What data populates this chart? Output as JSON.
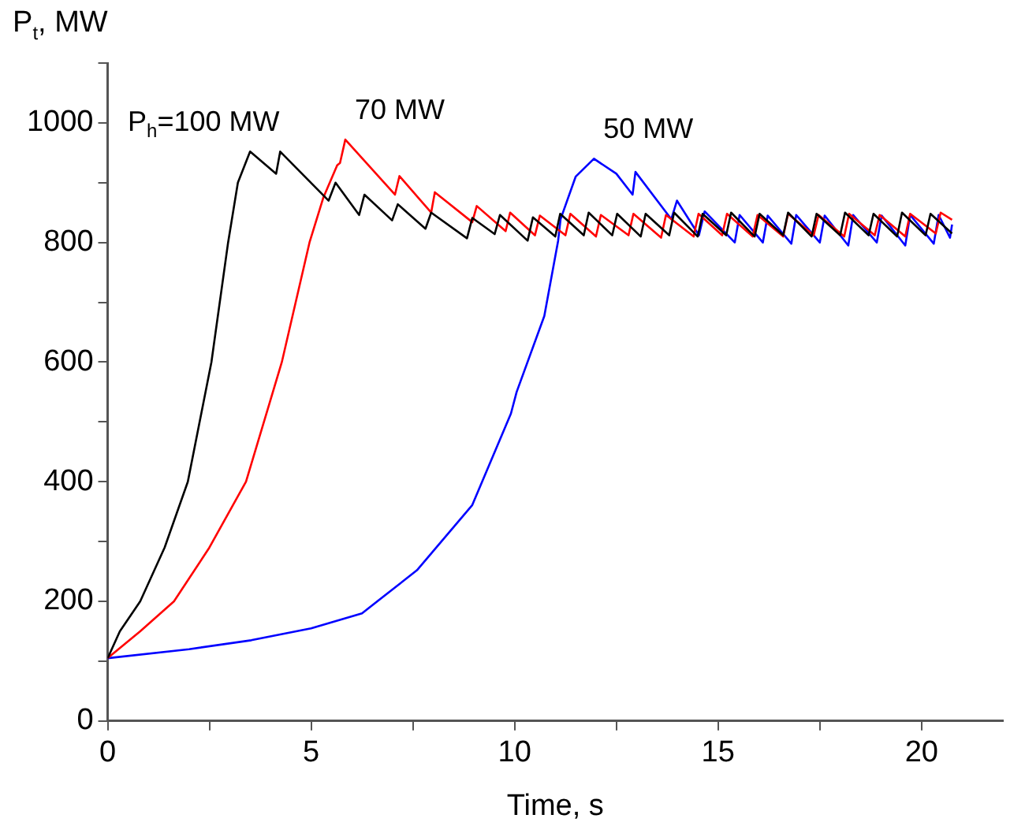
{
  "chart_data": {
    "type": "line",
    "xlabel": "Time, s",
    "ylabel": "P$_{t}$, MW",
    "xlim": [
      0,
      22
    ],
    "xticks": [
      0,
      {
        "value": 2.5,
        "label": null
      },
      5,
      {
        "value": 7.5,
        "label": null
      },
      10,
      {
        "value": 12.5,
        "label": null
      },
      15,
      {
        "value": 17.5,
        "label": null
      },
      20
    ],
    "ylim": [
      0,
      1100
    ],
    "yticks": [
      0,
      {
        "value": 100,
        "label": null
      },
      200,
      {
        "value": 300,
        "label": null
      },
      400,
      {
        "value": 500,
        "label": null
      },
      600,
      {
        "value": 700,
        "label": null
      },
      800,
      {
        "value": 900,
        "label": null
      },
      1000,
      {
        "value": 1100,
        "label": null
      }
    ],
    "grid": false,
    "legend": false,
    "marker": "none",
    "line_style": "solid",
    "series": [
      {
        "name": "P$_{h}$=100 MW",
        "color": "#000000",
        "x": [
          0,
          0.3,
          0.8,
          1.4,
          1.97,
          2.55,
          2.96,
          3.2,
          3.5,
          4.14,
          4.24,
          5.43,
          5.6,
          6.18,
          6.31,
          6.99,
          7.13,
          7.81,
          7.95,
          8.83,
          8.96,
          9.51,
          9.64,
          10.32,
          10.45,
          11.0,
          11.12,
          11.7,
          11.82,
          12.4,
          12.52,
          13.1,
          13.22,
          13.8,
          13.92,
          14.5,
          14.62,
          15.2,
          15.32,
          15.9,
          16.02,
          16.6,
          16.72,
          17.3,
          17.42,
          18.0,
          18.12,
          18.7,
          18.82,
          19.4,
          19.52,
          20.1,
          20.22,
          20.75
        ],
        "values": [
          105,
          150,
          200,
          290,
          400,
          600,
          800,
          900,
          952,
          915,
          952,
          870,
          900,
          846,
          880,
          837,
          864,
          823,
          850,
          807,
          841,
          814,
          846,
          803,
          842,
          810,
          848,
          812,
          850,
          812,
          848,
          810,
          848,
          812,
          850,
          810,
          848,
          812,
          850,
          810,
          848,
          812,
          850,
          810,
          848,
          812,
          850,
          812,
          848,
          810,
          850,
          812,
          848,
          815
        ]
      },
      {
        "name": "70 MW",
        "color": "#ff0000",
        "x": [
          0,
          0.8,
          1.63,
          2.5,
          3.4,
          4.28,
          4.96,
          5.3,
          5.64,
          5.71,
          5.84,
          7.06,
          7.17,
          7.95,
          8.04,
          8.96,
          9.07,
          9.78,
          9.89,
          10.5,
          10.62,
          11.25,
          11.37,
          12.0,
          12.12,
          12.8,
          12.92,
          13.6,
          13.72,
          14.4,
          14.52,
          15.1,
          15.22,
          15.85,
          15.97,
          16.6,
          16.72,
          17.35,
          17.47,
          18.1,
          18.22,
          18.85,
          18.97,
          19.6,
          19.72,
          20.35,
          20.47,
          20.75
        ],
        "values": [
          105,
          150,
          200,
          290,
          400,
          600,
          800,
          875,
          929,
          933,
          972,
          880,
          911,
          850,
          884,
          834,
          861,
          819,
          850,
          812,
          845,
          812,
          848,
          810,
          846,
          812,
          848,
          808,
          846,
          810,
          848,
          812,
          848,
          810,
          846,
          810,
          848,
          812,
          846,
          810,
          848,
          812,
          846,
          810,
          848,
          815,
          850,
          838
        ]
      },
      {
        "name": "50 MW",
        "color": "#0000ff",
        "x": [
          0,
          2,
          3.53,
          5,
          6.25,
          7.6,
          8.96,
          9.91,
          10.05,
          10.73,
          11.07,
          11.13,
          11.5,
          11.95,
          12.5,
          12.9,
          12.97,
          13.85,
          13.99,
          14.53,
          14.67,
          15.41,
          15.53,
          16.1,
          16.22,
          16.8,
          16.92,
          17.5,
          17.62,
          18.2,
          18.32,
          18.9,
          19.02,
          19.6,
          19.72,
          20.3,
          20.42,
          20.7,
          20.75
        ],
        "values": [
          105,
          120,
          135,
          155,
          180,
          252,
          361,
          514,
          550,
          677,
          803,
          839,
          910,
          940,
          915,
          880,
          918,
          839,
          870,
          812,
          852,
          800,
          846,
          800,
          845,
          798,
          846,
          800,
          845,
          795,
          846,
          800,
          845,
          795,
          846,
          798,
          846,
          808,
          830
        ]
      }
    ]
  }
}
